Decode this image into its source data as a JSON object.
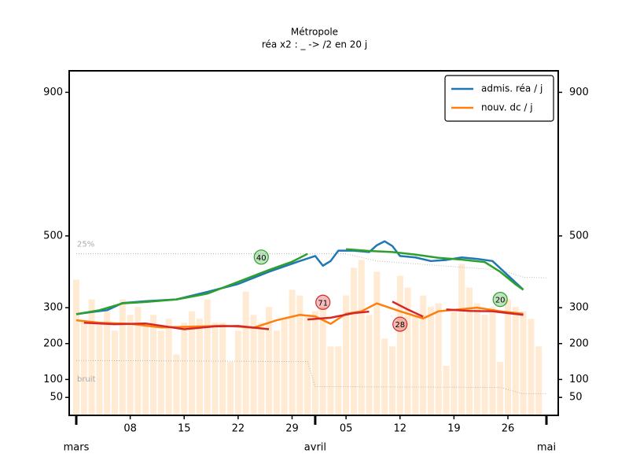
{
  "chart_data": {
    "type": "combo",
    "title": "Métropole",
    "subtitle": "réa x2 : _ -> /2 en 20 j",
    "xlim": [
      "03-01",
      "05-01"
    ],
    "xticks": [
      {
        "value": "03-08",
        "label": "08"
      },
      {
        "value": "03-15",
        "label": "15"
      },
      {
        "value": "03-22",
        "label": "22"
      },
      {
        "value": "03-29",
        "label": "29"
      },
      {
        "value": "04-05",
        "label": "05"
      },
      {
        "value": "04-12",
        "label": "12"
      },
      {
        "value": "04-19",
        "label": "19"
      },
      {
        "value": "04-26",
        "label": "26"
      }
    ],
    "month_ticks": [
      {
        "value": "03-01",
        "label": "mars"
      },
      {
        "value": "04-01",
        "label": "avril"
      },
      {
        "value": "05-01",
        "label": "mai"
      }
    ],
    "ylim": [
      0,
      960
    ],
    "yticks": [
      50,
      100,
      200,
      300,
      500,
      900
    ],
    "legend": "upper right",
    "bars": {
      "color": "#ffe3c4",
      "x": [
        "03-01",
        "03-02",
        "03-03",
        "03-04",
        "03-05",
        "03-06",
        "03-07",
        "03-08",
        "03-09",
        "03-10",
        "03-11",
        "03-12",
        "03-13",
        "03-14",
        "03-15",
        "03-16",
        "03-17",
        "03-18",
        "03-19",
        "03-20",
        "03-21",
        "03-22",
        "03-23",
        "03-24",
        "03-25",
        "03-26",
        "03-27",
        "03-28",
        "03-29",
        "03-30",
        "03-31",
        "04-01",
        "04-02",
        "04-03",
        "04-04",
        "04-05",
        "04-06",
        "04-07",
        "04-08",
        "04-09",
        "04-10",
        "04-11",
        "04-12",
        "04-13",
        "04-14",
        "04-15",
        "04-16",
        "04-17",
        "04-18",
        "04-19",
        "04-20",
        "04-21",
        "04-22",
        "04-23",
        "04-24",
        "04-25",
        "04-26",
        "04-27",
        "04-28",
        "04-29",
        "04-30"
      ],
      "values": [
        378,
        262,
        323,
        258,
        290,
        236,
        323,
        280,
        302,
        247,
        280,
        236,
        269,
        170,
        258,
        290,
        269,
        323,
        258,
        258,
        149,
        236,
        345,
        280,
        258,
        302,
        236,
        269,
        350,
        334,
        280,
        290,
        302,
        192,
        192,
        334,
        411,
        433,
        280,
        400,
        214,
        192,
        389,
        356,
        280,
        334,
        302,
        312,
        138,
        290,
        422,
        356,
        312,
        280,
        302,
        149,
        323,
        302,
        290,
        269,
        192
      ]
    },
    "lines": [
      {
        "name": "admis. réa / j",
        "color": "#1f77b4",
        "x": [
          "03-01",
          "03-03",
          "03-05",
          "03-07",
          "03-10",
          "03-14",
          "03-18",
          "03-22",
          "03-26",
          "03-30",
          "04-01",
          "04-02",
          "04-03",
          "04-04",
          "04-06",
          "04-08",
          "04-09",
          "04-10",
          "04-11",
          "04-12",
          "04-14",
          "04-16",
          "04-18",
          "04-20",
          "04-22",
          "04-24",
          "04-26",
          "04-28"
        ],
        "values": [
          282,
          288,
          293,
          313,
          318,
          323,
          344,
          366,
          400,
          430,
          444,
          417,
          430,
          459,
          459,
          455,
          474,
          485,
          472,
          444,
          440,
          430,
          433,
          440,
          436,
          430,
          390,
          350
        ]
      },
      {
        "name": "nouv. dc / j",
        "color": "#ff7f0e",
        "x": [
          "03-01",
          "03-04",
          "03-08",
          "03-12",
          "03-16",
          "03-20",
          "03-24",
          "03-27",
          "03-30",
          "04-01",
          "04-03",
          "04-05",
          "04-07",
          "04-09",
          "04-12",
          "04-15",
          "04-17",
          "04-20",
          "04-22",
          "04-25",
          "04-28"
        ],
        "values": [
          265,
          258,
          255,
          245,
          247,
          250,
          244,
          265,
          280,
          276,
          255,
          283,
          290,
          312,
          290,
          270,
          290,
          296,
          300,
          290,
          283
        ]
      },
      {
        "color": "#2ca02c",
        "x": [
          "03-01",
          "03-04",
          "03-07",
          "03-10",
          "03-14",
          "03-18",
          "03-22",
          "03-26",
          "03-29",
          "03-31",
          "04-03",
          "04-05",
          "04-08",
          "04-11",
          "04-14",
          "04-17",
          "04-20",
          "04-23",
          "04-25",
          "04-27",
          "04-28"
        ],
        "values": [
          282,
          293,
          312,
          316,
          323,
          339,
          372,
          405,
          428,
          450,
          null,
          463,
          458,
          455,
          448,
          439,
          434,
          427,
          400,
          365,
          350
        ]
      },
      {
        "color": "#d62728",
        "x": [
          "03-02",
          "03-06",
          "03-10",
          "03-15",
          "03-19",
          "03-22",
          "03-26",
          "03-28",
          "03-31",
          "04-03",
          "04-06",
          "04-08",
          "04-09",
          "04-11",
          "04-13",
          "04-15",
          "04-17",
          "04-18",
          "04-21",
          "04-24",
          "04-28"
        ],
        "values": [
          258,
          254,
          256,
          240,
          248,
          249,
          240,
          null,
          267,
          272,
          285,
          289,
          null,
          317,
          295,
          275,
          null,
          295,
          291,
          290,
          280
        ]
      }
    ],
    "reference_lines": [
      {
        "label": "25%",
        "color": "#aaaaaa",
        "x": [
          "03-01",
          "04-05",
          "04-09",
          "04-25",
          "04-28",
          "05-01"
        ],
        "values": [
          450,
          450,
          430,
          405,
          385,
          383
        ]
      },
      {
        "label": "bruit",
        "color": "#aaaaaa",
        "x": [
          "03-01",
          "03-31",
          "04-01",
          "04-25",
          "04-28",
          "05-01"
        ],
        "values": [
          153,
          150,
          80,
          78,
          60,
          60
        ]
      }
    ],
    "annotations": [
      {
        "x": "03-25",
        "y": 441,
        "text": "40",
        "color": "#2ca02c"
      },
      {
        "x": "04-02",
        "y": 315,
        "text": "71",
        "color": "#d62728"
      },
      {
        "x": "04-12",
        "y": 254,
        "text": "28",
        "color": "#d62728"
      },
      {
        "x": "04-25",
        "y": 323,
        "text": "20",
        "color": "#2ca02c"
      }
    ]
  }
}
